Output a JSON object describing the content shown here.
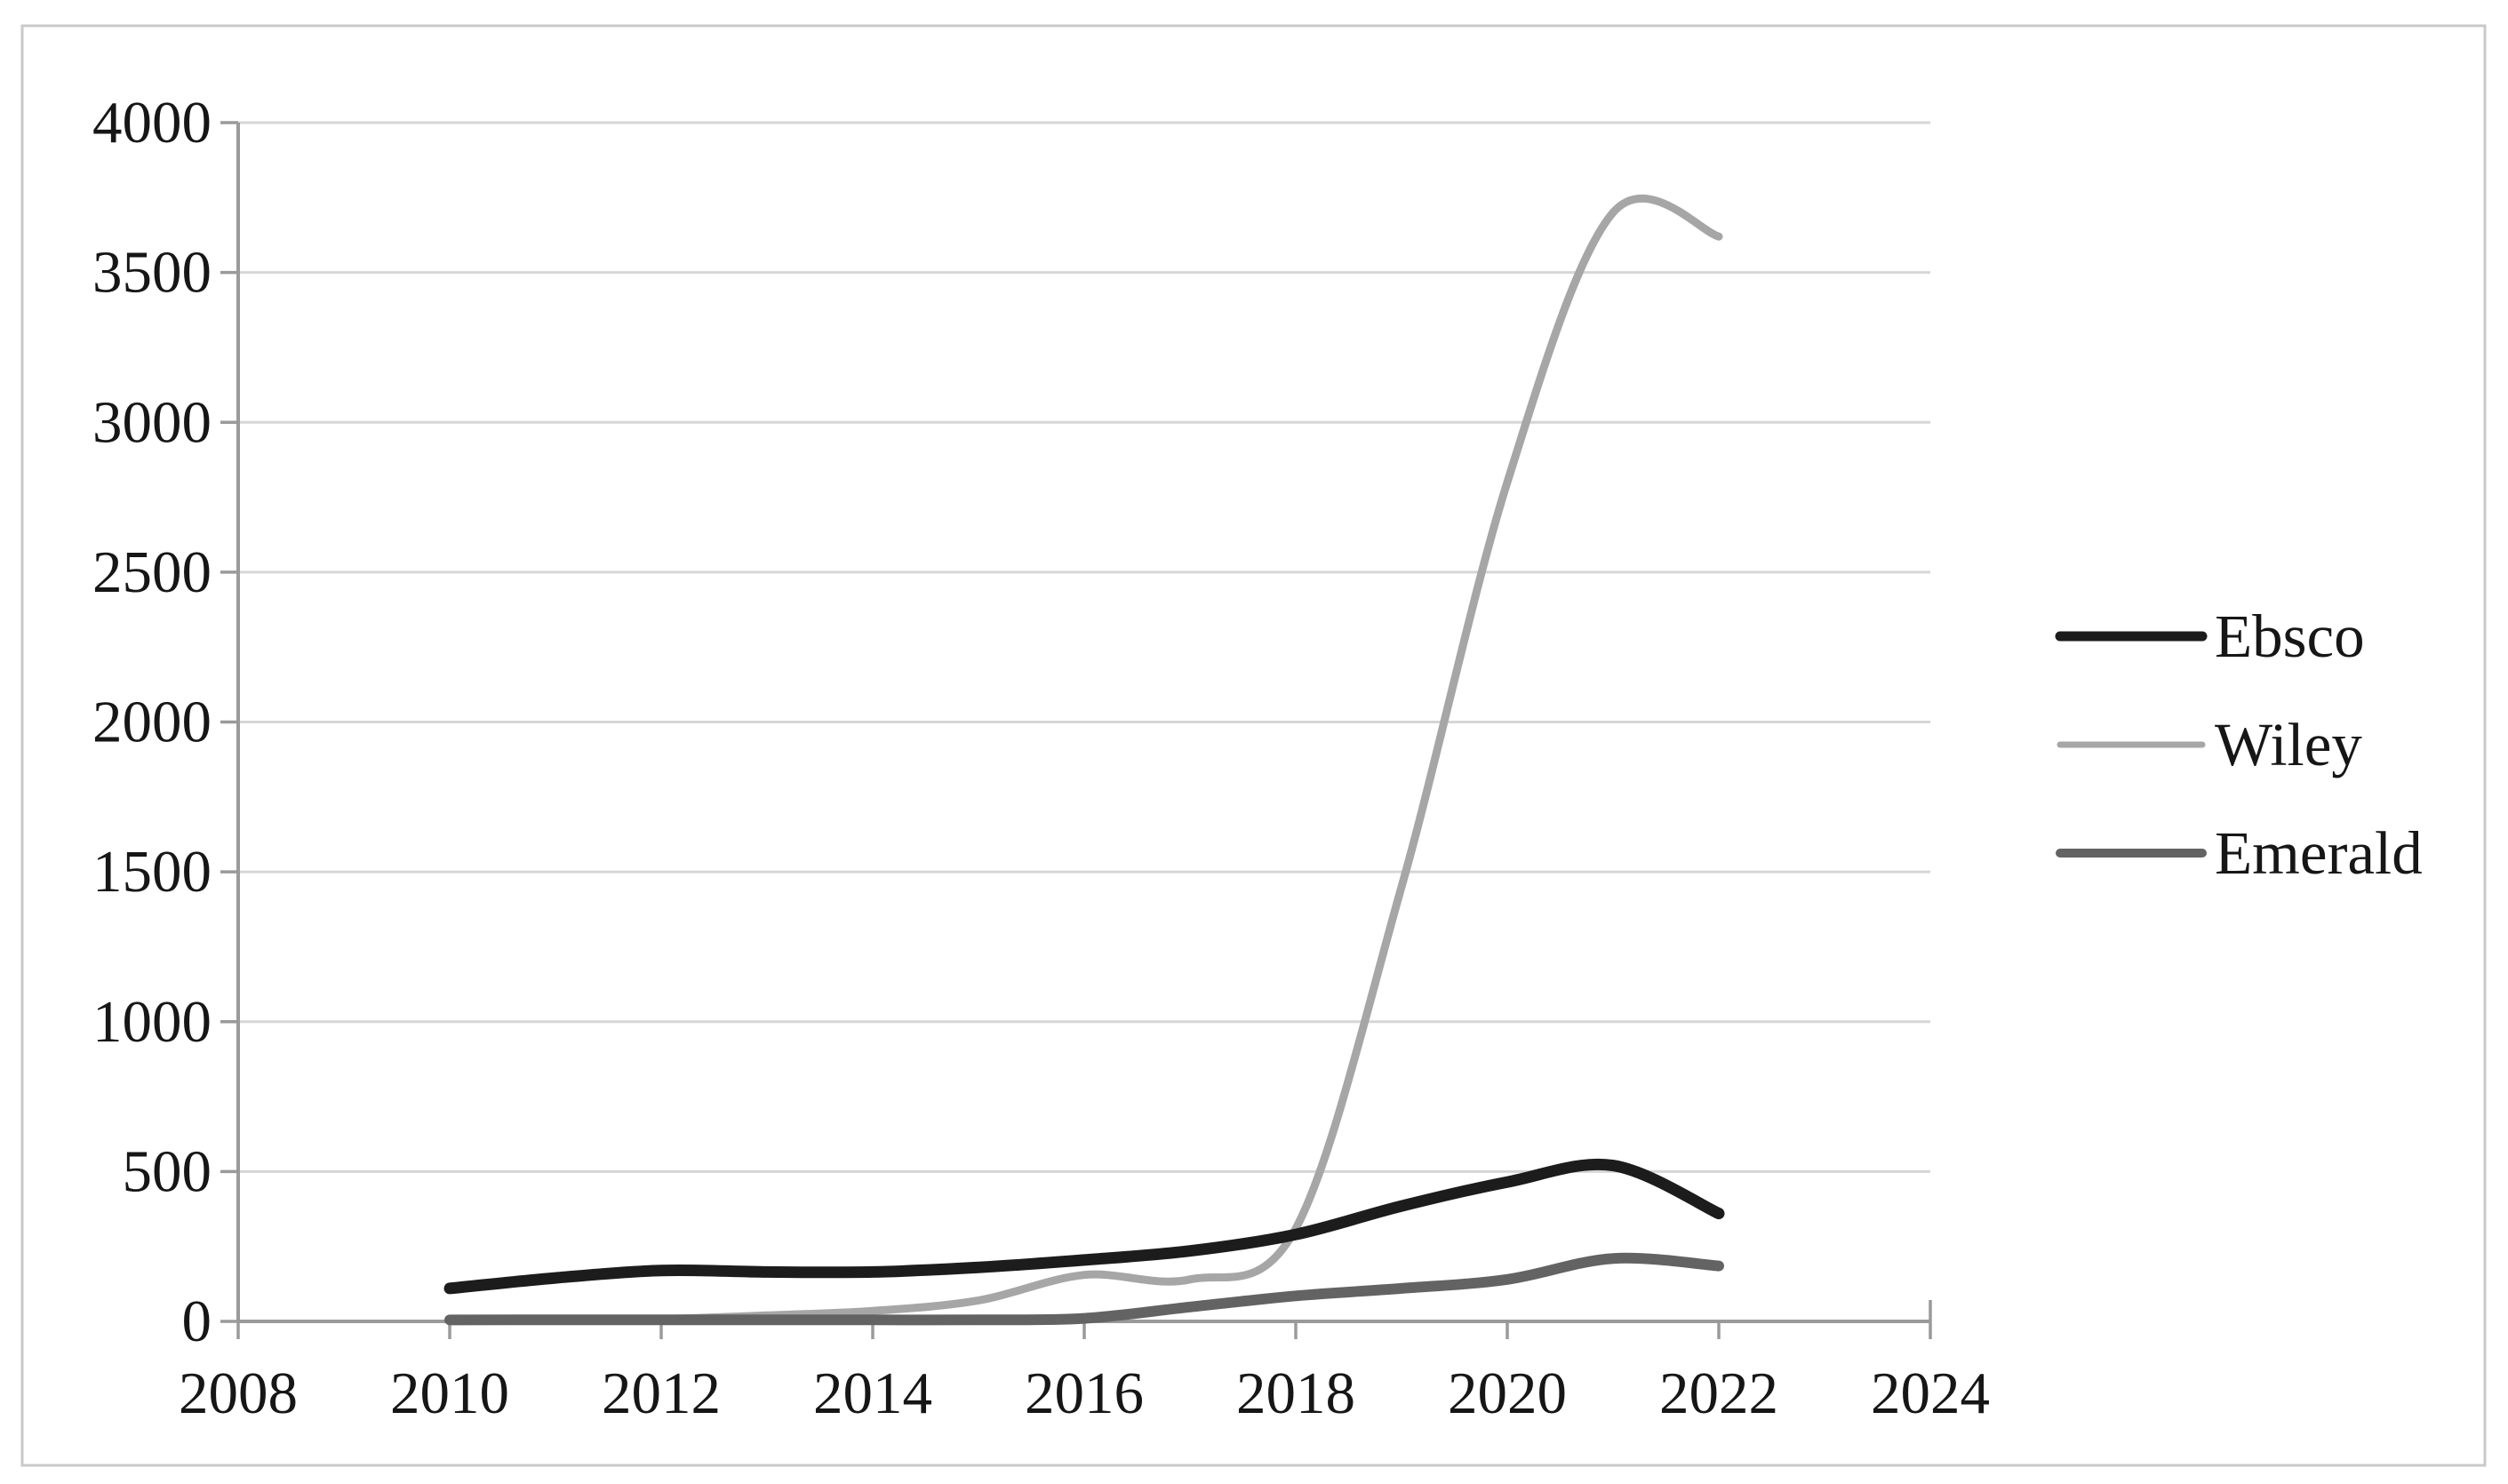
{
  "chart_data": {
    "type": "line",
    "title": "",
    "xlabel": "",
    "ylabel": "",
    "x": [
      2010,
      2011,
      2012,
      2013,
      2014,
      2015,
      2016,
      2017,
      2018,
      2019,
      2020,
      2021,
      2022
    ],
    "series": [
      {
        "name": "Ebsco",
        "color": "#1c1c1c",
        "stroke_width": 13,
        "values": [
          110,
          145,
          170,
          165,
          165,
          180,
          205,
          235,
          290,
          385,
          465,
          520,
          360
        ]
      },
      {
        "name": "Wiley",
        "color": "#a6a6a6",
        "stroke_width": 9,
        "values": [
          3,
          5,
          8,
          20,
          35,
          70,
          155,
          140,
          310,
          1450,
          2800,
          3700,
          3620
        ]
      },
      {
        "name": "Emerald",
        "color": "#636363",
        "stroke_width": 12,
        "values": [
          5,
          5,
          5,
          5,
          5,
          5,
          10,
          48,
          85,
          110,
          140,
          210,
          185
        ]
      }
    ],
    "x_ticks": [
      2008,
      2010,
      2012,
      2014,
      2016,
      2018,
      2020,
      2022,
      2024
    ],
    "y_ticks": [
      0,
      500,
      1000,
      1500,
      2000,
      2500,
      3000,
      3500,
      4000
    ],
    "xlim": [
      2008,
      2024
    ],
    "ylim": [
      0,
      4000
    ],
    "grid": "horizontal",
    "legend_position": "right-middle",
    "legend_items": [
      "Ebsco",
      "Wiley",
      "Emerald"
    ]
  },
  "colors": {
    "background": "#ffffff",
    "frame_border": "#c9c9c9",
    "gridline": "#d6d6d6",
    "axis": "#9a9a9a",
    "text": "#161616"
  }
}
